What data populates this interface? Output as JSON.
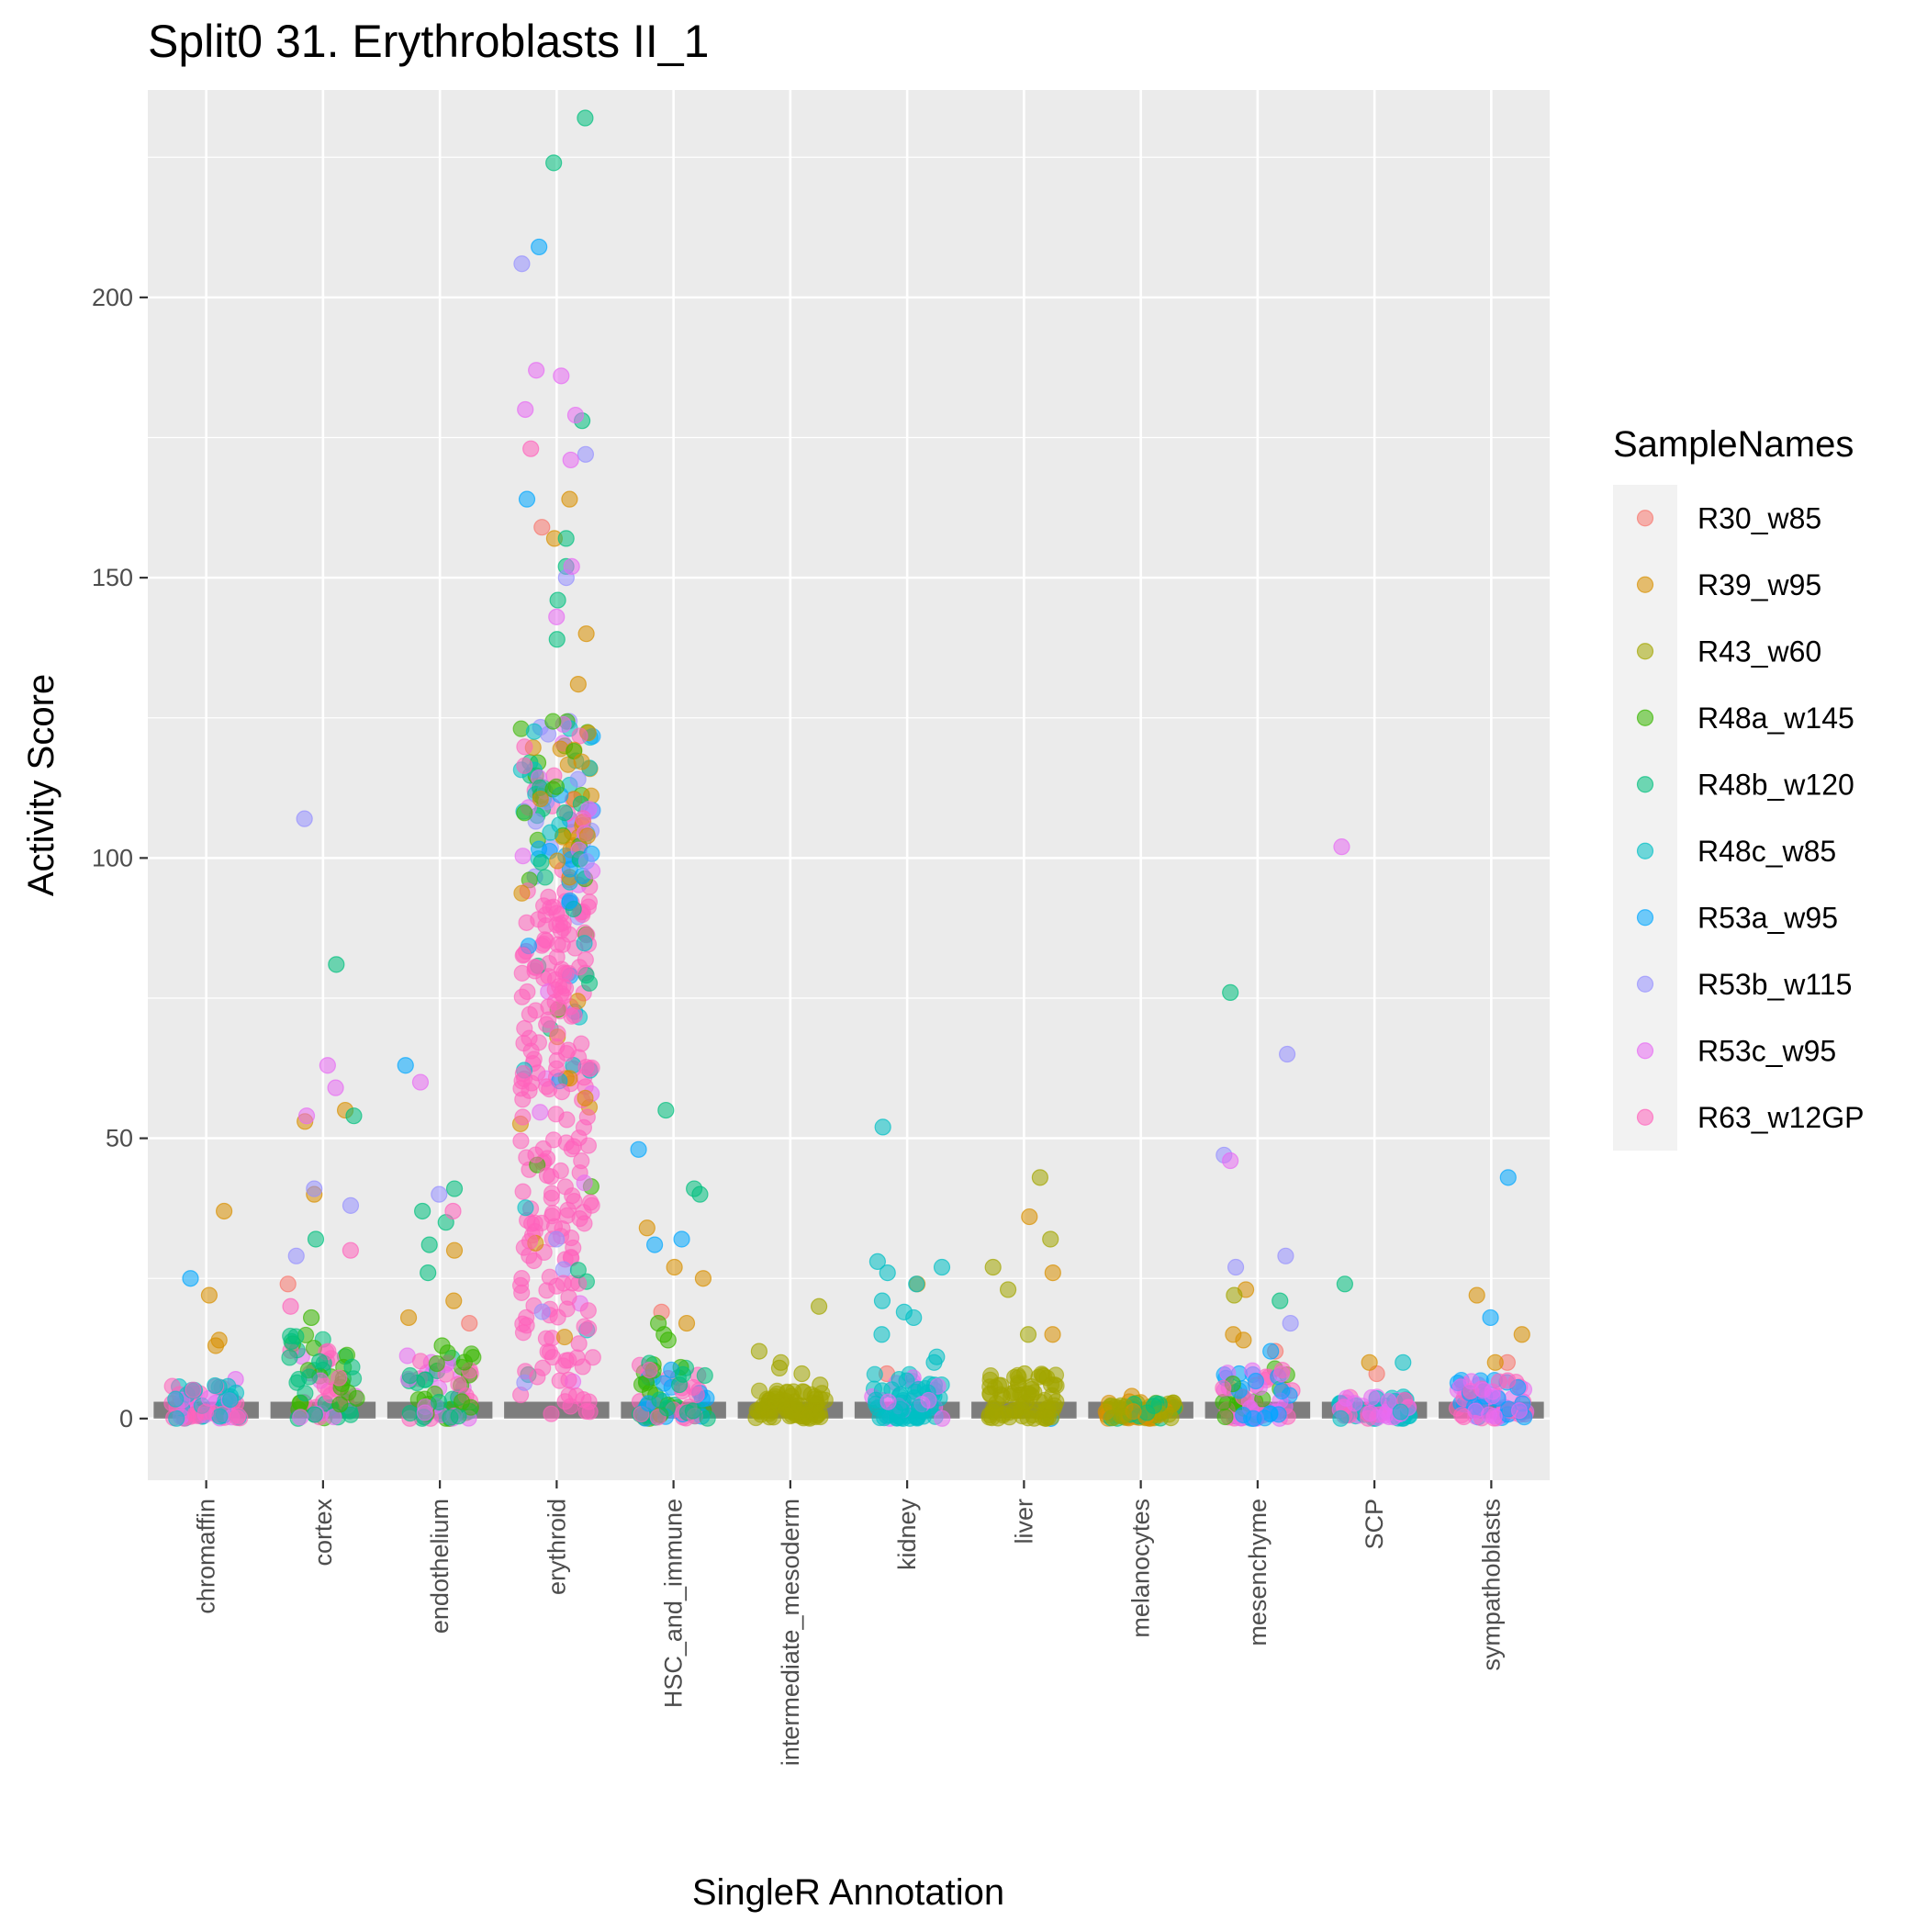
{
  "chart_data": {
    "type": "scatter",
    "title": "Split0 31. Erythroblasts II_1",
    "xlabel": "SingleR Annotation",
    "ylabel": "Activity Score",
    "ylim": [
      -11,
      237
    ],
    "yticks": [
      0,
      50,
      100,
      150,
      200
    ],
    "grid": true,
    "legend_position": "right",
    "legend_title": "SampleNames",
    "categories": [
      "chromaffin",
      "cortex",
      "endothelium",
      "erythroid",
      "HSC_and_immune",
      "intermediate_mesoderm",
      "kidney",
      "liver",
      "melanocytes",
      "mesenchyme",
      "SCP",
      "sympathoblasts"
    ],
    "series": [
      {
        "name": "R30_w85",
        "color": "#F8766D",
        "points": [
          [
            "cortex",
            24
          ],
          [
            "endothelium",
            17
          ],
          [
            "erythroid",
            159
          ],
          [
            "kidney",
            8
          ],
          [
            "sympathoblasts",
            10
          ],
          [
            "SCP",
            8
          ],
          [
            "HSC_and_immune",
            19
          ],
          [
            "mesenchyme",
            12
          ]
        ]
      },
      {
        "name": "R39_w95",
        "color": "#D89000",
        "points": [
          [
            "chromaffin",
            37
          ],
          [
            "chromaffin",
            22
          ],
          [
            "chromaffin",
            14
          ],
          [
            "chromaffin",
            13
          ],
          [
            "cortex",
            55
          ],
          [
            "cortex",
            53
          ],
          [
            "cortex",
            40
          ],
          [
            "endothelium",
            30
          ],
          [
            "endothelium",
            21
          ],
          [
            "endothelium",
            18
          ],
          [
            "erythroid",
            164
          ],
          [
            "erythroid",
            157
          ],
          [
            "erythroid",
            140
          ],
          [
            "erythroid",
            131
          ],
          [
            "HSC_and_immune",
            34
          ],
          [
            "HSC_and_immune",
            27
          ],
          [
            "HSC_and_immune",
            25
          ],
          [
            "HSC_and_immune",
            17
          ],
          [
            "kidney",
            24
          ],
          [
            "liver",
            36
          ],
          [
            "liver",
            26
          ],
          [
            "liver",
            15
          ],
          [
            "melanocytes",
            4
          ],
          [
            "melanocytes",
            3
          ],
          [
            "melanocytes",
            2
          ],
          [
            "mesenchyme",
            23
          ],
          [
            "mesenchyme",
            15
          ],
          [
            "mesenchyme",
            14
          ],
          [
            "SCP",
            10
          ],
          [
            "sympathoblasts",
            22
          ],
          [
            "sympathoblasts",
            15
          ],
          [
            "sympathoblasts",
            10
          ]
        ]
      },
      {
        "name": "R43_w60",
        "color": "#A3A500",
        "points": [
          [
            "liver",
            43
          ],
          [
            "liver",
            32
          ],
          [
            "liver",
            27
          ],
          [
            "liver",
            23
          ],
          [
            "liver",
            15
          ],
          [
            "liver",
            8
          ],
          [
            "liver",
            6
          ],
          [
            "liver",
            4
          ],
          [
            "intermediate_mesoderm",
            20
          ],
          [
            "intermediate_mesoderm",
            12
          ],
          [
            "intermediate_mesoderm",
            10
          ],
          [
            "intermediate_mesoderm",
            9
          ],
          [
            "intermediate_mesoderm",
            8
          ],
          [
            "intermediate_mesoderm",
            6
          ],
          [
            "intermediate_mesoderm",
            4
          ],
          [
            "mesenchyme",
            22
          ],
          [
            "melanocytes",
            2
          ]
        ]
      },
      {
        "name": "R48a_w145",
        "color": "#39B600",
        "points": [
          [
            "HSC_and_immune",
            17
          ],
          [
            "HSC_and_immune",
            15
          ],
          [
            "HSC_and_immune",
            14
          ],
          [
            "cortex",
            18
          ],
          [
            "endothelium",
            13
          ],
          [
            "erythroid",
            120
          ],
          [
            "erythroid",
            117
          ]
        ]
      },
      {
        "name": "R48b_w120",
        "color": "#00BF7D",
        "points": [
          [
            "erythroid",
            232
          ],
          [
            "erythroid",
            224
          ],
          [
            "erythroid",
            178
          ],
          [
            "erythroid",
            157
          ],
          [
            "erythroid",
            152
          ],
          [
            "erythroid",
            146
          ],
          [
            "erythroid",
            139
          ],
          [
            "cortex",
            81
          ],
          [
            "cortex",
            54
          ],
          [
            "cortex",
            32
          ],
          [
            "endothelium",
            41
          ],
          [
            "endothelium",
            37
          ],
          [
            "endothelium",
            35
          ],
          [
            "endothelium",
            31
          ],
          [
            "endothelium",
            26
          ],
          [
            "HSC_and_immune",
            55
          ],
          [
            "HSC_and_immune",
            41
          ],
          [
            "HSC_and_immune",
            40
          ],
          [
            "mesenchyme",
            76
          ],
          [
            "mesenchyme",
            21
          ],
          [
            "SCP",
            24
          ],
          [
            "melanocytes",
            1
          ]
        ]
      },
      {
        "name": "R48c_w85",
        "color": "#00BFC4",
        "points": [
          [
            "kidney",
            52
          ],
          [
            "kidney",
            28
          ],
          [
            "kidney",
            27
          ],
          [
            "kidney",
            26
          ],
          [
            "kidney",
            24
          ],
          [
            "kidney",
            21
          ],
          [
            "kidney",
            19
          ],
          [
            "kidney",
            18
          ],
          [
            "kidney",
            15
          ],
          [
            "kidney",
            11
          ],
          [
            "kidney",
            10
          ],
          [
            "kidney",
            6
          ],
          [
            "kidney",
            4
          ],
          [
            "SCP",
            10
          ],
          [
            "melanocytes",
            1
          ]
        ]
      },
      {
        "name": "R53a_w95",
        "color": "#00A7FF",
        "points": [
          [
            "chromaffin",
            25
          ],
          [
            "endothelium",
            63
          ],
          [
            "erythroid",
            209
          ],
          [
            "erythroid",
            164
          ],
          [
            "HSC_and_immune",
            48
          ],
          [
            "HSC_and_immune",
            32
          ],
          [
            "HSC_and_immune",
            31
          ],
          [
            "sympathoblasts",
            43
          ],
          [
            "sympathoblasts",
            18
          ],
          [
            "mesenchyme",
            12
          ],
          [
            "mesenchyme",
            8
          ],
          [
            "liver",
            0
          ]
        ]
      },
      {
        "name": "R53b_w115",
        "color": "#9590FF",
        "points": [
          [
            "cortex",
            107
          ],
          [
            "cortex",
            41
          ],
          [
            "cortex",
            38
          ],
          [
            "cortex",
            29
          ],
          [
            "endothelium",
            40
          ],
          [
            "erythroid",
            206
          ],
          [
            "erythroid",
            172
          ],
          [
            "erythroid",
            150
          ],
          [
            "mesenchyme",
            65
          ],
          [
            "mesenchyme",
            47
          ],
          [
            "mesenchyme",
            29
          ],
          [
            "mesenchyme",
            27
          ],
          [
            "mesenchyme",
            17
          ]
        ]
      },
      {
        "name": "R53c_w95",
        "color": "#E76BF3",
        "points": [
          [
            "cortex",
            63
          ],
          [
            "cortex",
            59
          ],
          [
            "cortex",
            54
          ],
          [
            "endothelium",
            60
          ],
          [
            "erythroid",
            187
          ],
          [
            "erythroid",
            186
          ],
          [
            "erythroid",
            180
          ],
          [
            "erythroid",
            179
          ],
          [
            "erythroid",
            171
          ],
          [
            "erythroid",
            152
          ],
          [
            "erythroid",
            143
          ],
          [
            "SCP",
            102
          ],
          [
            "mesenchyme",
            46
          ],
          [
            "chromaffin",
            7
          ]
        ]
      },
      {
        "name": "R63_w12GP",
        "color": "#FF62BC",
        "points": [
          [
            "erythroid",
            173
          ],
          [
            "endothelium",
            37
          ],
          [
            "cortex",
            30
          ],
          [
            "cortex",
            20
          ],
          [
            "chromaffin",
            3
          ],
          [
            "HSC_and_immune",
            5
          ],
          [
            "mesenchyme",
            5
          ],
          [
            "sympathoblasts",
            3
          ],
          [
            "SCP",
            2
          ]
        ]
      }
    ]
  }
}
